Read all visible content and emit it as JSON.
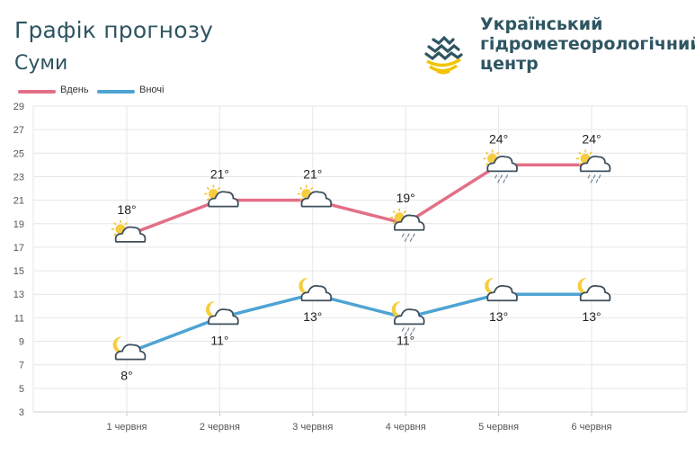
{
  "header": {
    "title": "Графік прогнозу",
    "city": "Суми",
    "org_lines": [
      "Український",
      "гідрометеорологічний",
      "центр"
    ]
  },
  "colors": {
    "day": "#e36f86",
    "night": "#4ea3d3",
    "grid": "#e6e6e6",
    "text": "#2e5561"
  },
  "chart_data": {
    "type": "line",
    "title": "Графік прогнозу",
    "categories": [
      "1 червня",
      "2 червня",
      "3 червня",
      "4 червня",
      "5 червня",
      "6 червня"
    ],
    "series": [
      {
        "name": "Вдень",
        "values": [
          18,
          21,
          21,
          19,
          24,
          24
        ],
        "labels": [
          "18°",
          "21°",
          "21°",
          "19°",
          "24°",
          "24°"
        ],
        "icons": [
          "sun-cloud-icon",
          "sun-cloud-icon",
          "sun-cloud-icon",
          "sun-cloud-rain-icon",
          "sun-cloud-rain-icon",
          "sun-cloud-rain-icon"
        ]
      },
      {
        "name": "Вночі",
        "values": [
          8,
          11,
          13,
          11,
          13,
          13
        ],
        "labels": [
          "8°",
          "11°",
          "13°",
          "11°",
          "13°",
          "13°"
        ],
        "icons": [
          "moon-cloud-icon",
          "moon-cloud-icon",
          "moon-cloud-icon",
          "moon-cloud-rain-icon",
          "moon-cloud-icon",
          "moon-cloud-icon"
        ]
      }
    ],
    "yticks": [
      "3",
      "5",
      "7",
      "9",
      "11",
      "13",
      "15",
      "17",
      "19",
      "21",
      "23",
      "25",
      "27",
      "29"
    ],
    "ylim": [
      3,
      29
    ],
    "grid": true,
    "legend_position": "top-left"
  }
}
